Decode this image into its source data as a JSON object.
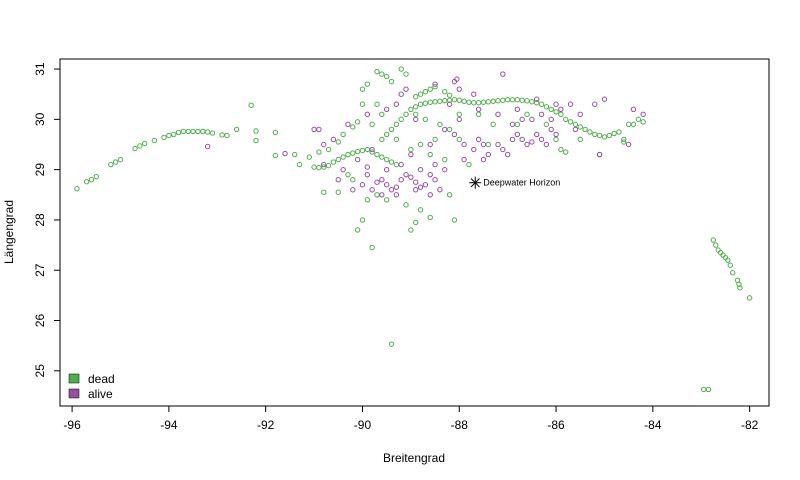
{
  "chart_data": {
    "type": "scatter",
    "title": "",
    "xlabel": "Breitengrad",
    "ylabel": "Längengrad",
    "xlim": [
      -96.25,
      -81.6
    ],
    "ylim": [
      24.3,
      31.2
    ],
    "xticks": [
      -96,
      -94,
      -92,
      -90,
      -88,
      -86,
      -84,
      -82
    ],
    "yticks": [
      25,
      26,
      27,
      28,
      29,
      30,
      31
    ],
    "legend": {
      "position": "bottom-left",
      "entries": [
        {
          "label": "dead",
          "color": "#4DAF4A"
        },
        {
          "label": "alive",
          "color": "#984EA3"
        }
      ]
    },
    "annotation": {
      "label": "Deepwater Horizon",
      "x": -87.67,
      "y": 28.74,
      "marker": "asterisk"
    },
    "series": [
      {
        "name": "dead",
        "color": "#4DAF4A",
        "points": [
          [
            -95.9,
            28.62
          ],
          [
            -95.7,
            28.76
          ],
          [
            -95.6,
            28.8
          ],
          [
            -95.5,
            28.86
          ],
          [
            -95.2,
            29.1
          ],
          [
            -95.1,
            29.15
          ],
          [
            -95.0,
            29.2
          ],
          [
            -94.7,
            29.42
          ],
          [
            -94.6,
            29.47
          ],
          [
            -94.5,
            29.52
          ],
          [
            -94.3,
            29.58
          ],
          [
            -94.1,
            29.64
          ],
          [
            -94.0,
            29.68
          ],
          [
            -93.9,
            29.7
          ],
          [
            -93.8,
            29.74
          ],
          [
            -93.7,
            29.76
          ],
          [
            -93.6,
            29.76
          ],
          [
            -93.5,
            29.76
          ],
          [
            -93.4,
            29.76
          ],
          [
            -93.3,
            29.76
          ],
          [
            -93.2,
            29.75
          ],
          [
            -93.1,
            29.73
          ],
          [
            -92.9,
            29.69
          ],
          [
            -92.8,
            29.68
          ],
          [
            -92.6,
            29.8
          ],
          [
            -92.3,
            30.28
          ],
          [
            -92.2,
            29.77
          ],
          [
            -92.2,
            29.58
          ],
          [
            -91.8,
            29.74
          ],
          [
            -91.8,
            29.28
          ],
          [
            -91.4,
            29.3
          ],
          [
            -91.3,
            29.1
          ],
          [
            -91.0,
            29.05
          ],
          [
            -90.9,
            29.04
          ],
          [
            -90.8,
            29.05
          ],
          [
            -90.7,
            29.08
          ],
          [
            -90.6,
            29.15
          ],
          [
            -90.5,
            29.2
          ],
          [
            -90.4,
            29.25
          ],
          [
            -90.3,
            29.3
          ],
          [
            -90.2,
            29.33
          ],
          [
            -90.1,
            29.36
          ],
          [
            -90.0,
            29.38
          ],
          [
            -89.9,
            29.4
          ],
          [
            -89.8,
            29.35
          ],
          [
            -89.7,
            29.3
          ],
          [
            -89.6,
            29.25
          ],
          [
            -89.5,
            29.2
          ],
          [
            -89.4,
            29.15
          ],
          [
            -89.3,
            29.1
          ],
          [
            -89.6,
            29.6
          ],
          [
            -89.5,
            29.7
          ],
          [
            -89.4,
            29.8
          ],
          [
            -89.3,
            29.9
          ],
          [
            -89.2,
            30.0
          ],
          [
            -89.1,
            30.1
          ],
          [
            -89.0,
            30.2
          ],
          [
            -88.9,
            30.25
          ],
          [
            -88.8,
            30.3
          ],
          [
            -88.7,
            30.32
          ],
          [
            -88.6,
            30.34
          ],
          [
            -88.5,
            30.35
          ],
          [
            -88.4,
            30.36
          ],
          [
            -88.3,
            30.37
          ],
          [
            -88.2,
            30.38
          ],
          [
            -88.1,
            30.39
          ],
          [
            -88.0,
            30.38
          ],
          [
            -87.9,
            30.36
          ],
          [
            -87.8,
            30.34
          ],
          [
            -87.7,
            30.33
          ],
          [
            -87.6,
            30.33
          ],
          [
            -87.5,
            30.34
          ],
          [
            -87.4,
            30.35
          ],
          [
            -87.3,
            30.36
          ],
          [
            -87.2,
            30.37
          ],
          [
            -87.1,
            30.38
          ],
          [
            -87.0,
            30.39
          ],
          [
            -86.9,
            30.39
          ],
          [
            -86.8,
            30.39
          ],
          [
            -86.7,
            30.38
          ],
          [
            -86.6,
            30.37
          ],
          [
            -86.5,
            30.35
          ],
          [
            -86.4,
            30.33
          ],
          [
            -86.3,
            30.3
          ],
          [
            -86.2,
            30.25
          ],
          [
            -86.1,
            30.2
          ],
          [
            -86.0,
            30.15
          ],
          [
            -85.9,
            30.1
          ],
          [
            -85.8,
            30.0
          ],
          [
            -85.7,
            29.95
          ],
          [
            -85.6,
            29.9
          ],
          [
            -85.5,
            29.85
          ],
          [
            -85.4,
            29.8
          ],
          [
            -85.3,
            29.75
          ],
          [
            -85.2,
            29.7
          ],
          [
            -85.1,
            29.68
          ],
          [
            -85.0,
            29.65
          ],
          [
            -84.9,
            29.68
          ],
          [
            -84.8,
            29.72
          ],
          [
            -84.7,
            29.75
          ],
          [
            -84.4,
            29.9
          ],
          [
            -84.3,
            30.0
          ],
          [
            -84.2,
            29.95
          ],
          [
            -84.6,
            29.55
          ],
          [
            -85.1,
            29.3
          ],
          [
            -85.8,
            29.35
          ],
          [
            -88.9,
            30.45
          ],
          [
            -88.8,
            30.5
          ],
          [
            -88.7,
            30.55
          ],
          [
            -88.6,
            30.6
          ],
          [
            -88.5,
            30.65
          ],
          [
            -88.3,
            30.55
          ],
          [
            -88.2,
            30.48
          ],
          [
            -89.4,
            30.75
          ],
          [
            -89.5,
            30.85
          ],
          [
            -89.6,
            30.9
          ],
          [
            -89.7,
            30.95
          ],
          [
            -89.9,
            30.7
          ],
          [
            -90.0,
            30.6
          ],
          [
            -89.2,
            31.0
          ],
          [
            -89.1,
            30.9
          ],
          [
            -88.9,
            30.1
          ],
          [
            -88.4,
            29.9
          ],
          [
            -88.2,
            29.8
          ],
          [
            -88.0,
            29.6
          ],
          [
            -90.1,
            29.95
          ],
          [
            -90.2,
            29.85
          ],
          [
            -90.4,
            29.7
          ],
          [
            -90.5,
            29.55
          ],
          [
            -90.7,
            29.4
          ],
          [
            -90.9,
            29.35
          ],
          [
            -91.1,
            29.25
          ],
          [
            -90.3,
            28.9
          ],
          [
            -90.2,
            28.8
          ],
          [
            -90.5,
            28.55
          ],
          [
            -90.8,
            28.55
          ],
          [
            -89.9,
            28.4
          ],
          [
            -89.7,
            28.5
          ],
          [
            -89.5,
            28.4
          ],
          [
            -89.1,
            28.3
          ],
          [
            -88.8,
            28.2
          ],
          [
            -88.9,
            27.95
          ],
          [
            -88.6,
            28.05
          ],
          [
            -88.1,
            28.0
          ],
          [
            -88.2,
            28.5
          ],
          [
            -89.0,
            27.8
          ],
          [
            -90.0,
            28.0
          ],
          [
            -90.1,
            27.8
          ],
          [
            -89.8,
            27.45
          ],
          [
            -89.4,
            25.53
          ],
          [
            -89.0,
            29.4
          ],
          [
            -88.8,
            29.5
          ],
          [
            -88.6,
            29.3
          ],
          [
            -88.5,
            29.6
          ],
          [
            -89.3,
            29.6
          ],
          [
            -89.8,
            29.9
          ],
          [
            -89.6,
            30.1
          ],
          [
            -89.7,
            30.3
          ],
          [
            -90.0,
            30.3
          ],
          [
            -88.7,
            30.0
          ],
          [
            -88.0,
            30.1
          ],
          [
            -87.6,
            30.1
          ],
          [
            -87.3,
            29.9
          ],
          [
            -87.4,
            29.5
          ],
          [
            -87.8,
            29.1
          ],
          [
            -88.3,
            29.2
          ],
          [
            -86.8,
            29.9
          ],
          [
            -86.6,
            30.1
          ],
          [
            -86.2,
            29.9
          ],
          [
            -85.9,
            29.4
          ],
          [
            -86.0,
            29.6
          ],
          [
            -84.5,
            29.9
          ],
          [
            -84.6,
            29.6
          ],
          [
            -85.5,
            29.6
          ],
          [
            -82.75,
            27.6
          ],
          [
            -82.7,
            27.5
          ],
          [
            -82.65,
            27.4
          ],
          [
            -82.6,
            27.35
          ],
          [
            -82.55,
            27.3
          ],
          [
            -82.5,
            27.25
          ],
          [
            -82.45,
            27.2
          ],
          [
            -82.4,
            27.1
          ],
          [
            -82.35,
            26.95
          ],
          [
            -82.25,
            26.8
          ],
          [
            -82.22,
            26.72
          ],
          [
            -82.2,
            26.65
          ],
          [
            -82.0,
            26.45
          ],
          [
            -82.95,
            24.63
          ],
          [
            -82.85,
            24.63
          ]
        ]
      },
      {
        "name": "alive",
        "color": "#984EA3",
        "points": [
          [
            -93.2,
            29.46
          ],
          [
            -91.6,
            29.32
          ],
          [
            -90.9,
            29.8
          ],
          [
            -90.8,
            29.1
          ],
          [
            -90.5,
            28.8
          ],
          [
            -90.4,
            29.0
          ],
          [
            -90.2,
            28.6
          ],
          [
            -90.0,
            28.7
          ],
          [
            -89.9,
            28.9
          ],
          [
            -89.8,
            28.6
          ],
          [
            -89.7,
            28.75
          ],
          [
            -89.6,
            28.8
          ],
          [
            -89.5,
            28.7
          ],
          [
            -89.4,
            28.6
          ],
          [
            -89.3,
            28.65
          ],
          [
            -89.2,
            28.8
          ],
          [
            -89.1,
            28.9
          ],
          [
            -89.0,
            28.85
          ],
          [
            -88.9,
            28.75
          ],
          [
            -88.8,
            28.65
          ],
          [
            -88.7,
            28.7
          ],
          [
            -88.6,
            28.9
          ],
          [
            -88.5,
            28.8
          ],
          [
            -88.4,
            28.6
          ],
          [
            -89.6,
            28.5
          ],
          [
            -89.3,
            28.5
          ],
          [
            -88.9,
            28.6
          ],
          [
            -88.6,
            28.5
          ],
          [
            -90.1,
            29.2
          ],
          [
            -89.9,
            29.05
          ],
          [
            -89.5,
            29.0
          ],
          [
            -89.2,
            29.1
          ],
          [
            -88.8,
            29.0
          ],
          [
            -88.5,
            29.1
          ],
          [
            -88.3,
            29.0
          ],
          [
            -87.7,
            29.4
          ],
          [
            -87.6,
            29.6
          ],
          [
            -87.5,
            29.5
          ],
          [
            -87.4,
            29.3
          ],
          [
            -87.2,
            29.5
          ],
          [
            -87.1,
            29.4
          ],
          [
            -87.0,
            29.3
          ],
          [
            -86.9,
            29.6
          ],
          [
            -86.8,
            29.7
          ],
          [
            -86.7,
            29.6
          ],
          [
            -86.6,
            29.5
          ],
          [
            -86.5,
            29.55
          ],
          [
            -86.4,
            29.7
          ],
          [
            -86.3,
            29.6
          ],
          [
            -86.2,
            29.5
          ],
          [
            -86.1,
            29.8
          ],
          [
            -86.0,
            29.7
          ],
          [
            -86.9,
            29.9
          ],
          [
            -86.7,
            30.0
          ],
          [
            -86.5,
            30.0
          ],
          [
            -86.3,
            30.1
          ],
          [
            -86.1,
            30.0
          ],
          [
            -85.9,
            30.2
          ],
          [
            -85.7,
            30.3
          ],
          [
            -85.5,
            30.1
          ],
          [
            -85.2,
            30.3
          ],
          [
            -85.0,
            30.4
          ],
          [
            -84.4,
            30.2
          ],
          [
            -84.2,
            30.1
          ],
          [
            -84.5,
            29.5
          ],
          [
            -85.1,
            29.3
          ],
          [
            -85.6,
            29.8
          ],
          [
            -86.0,
            30.3
          ],
          [
            -86.4,
            30.4
          ],
          [
            -86.8,
            30.2
          ],
          [
            -87.2,
            30.1
          ],
          [
            -87.6,
            30.2
          ],
          [
            -88.0,
            30.0
          ],
          [
            -88.1,
            29.7
          ],
          [
            -88.0,
            30.6
          ],
          [
            -88.05,
            30.8
          ],
          [
            -88.1,
            30.75
          ],
          [
            -88.2,
            30.3
          ],
          [
            -87.7,
            30.5
          ],
          [
            -87.1,
            30.9
          ],
          [
            -88.5,
            30.7
          ],
          [
            -88.9,
            30.0
          ],
          [
            -89.1,
            30.6
          ],
          [
            -89.2,
            30.5
          ],
          [
            -89.3,
            30.3
          ],
          [
            -89.5,
            30.2
          ],
          [
            -89.9,
            30.1
          ],
          [
            -90.3,
            29.9
          ],
          [
            -90.6,
            29.6
          ],
          [
            -90.8,
            29.5
          ],
          [
            -91.0,
            29.8
          ],
          [
            -88.6,
            29.5
          ],
          [
            -88.3,
            29.8
          ],
          [
            -87.9,
            29.2
          ],
          [
            -87.5,
            29.2
          ],
          [
            -87.9,
            29.5
          ],
          [
            -89.0,
            29.3
          ],
          [
            -89.8,
            29.4
          ]
        ]
      }
    ]
  }
}
